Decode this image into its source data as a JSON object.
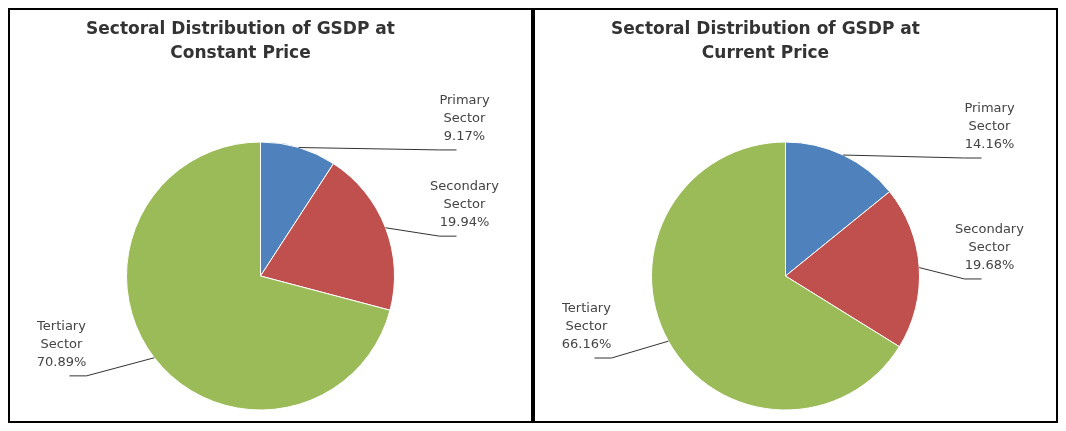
{
  "chart_data": [
    {
      "type": "pie",
      "title": "Sectoral Distribution of GSDP at Constant Price",
      "categories": [
        "Primary Sector",
        "Secondary Sector",
        "Tertiary Sector"
      ],
      "values": [
        9.17,
        19.94,
        70.89
      ],
      "value_labels": [
        "9.17%",
        "19.94%",
        "70.89%"
      ],
      "colors": [
        "#4f81bd",
        "#c0504d",
        "#9bbb59"
      ]
    },
    {
      "type": "pie",
      "title": "Sectoral Distribution of GSDP at Current Price",
      "categories": [
        "Primary Sector",
        "Secondary Sector",
        "Tertiary Sector"
      ],
      "values": [
        14.16,
        19.68,
        66.16
      ],
      "value_labels": [
        "14.16%",
        "19.68%",
        "66.16%"
      ],
      "colors": [
        "#4f81bd",
        "#c0504d",
        "#9bbb59"
      ]
    }
  ]
}
